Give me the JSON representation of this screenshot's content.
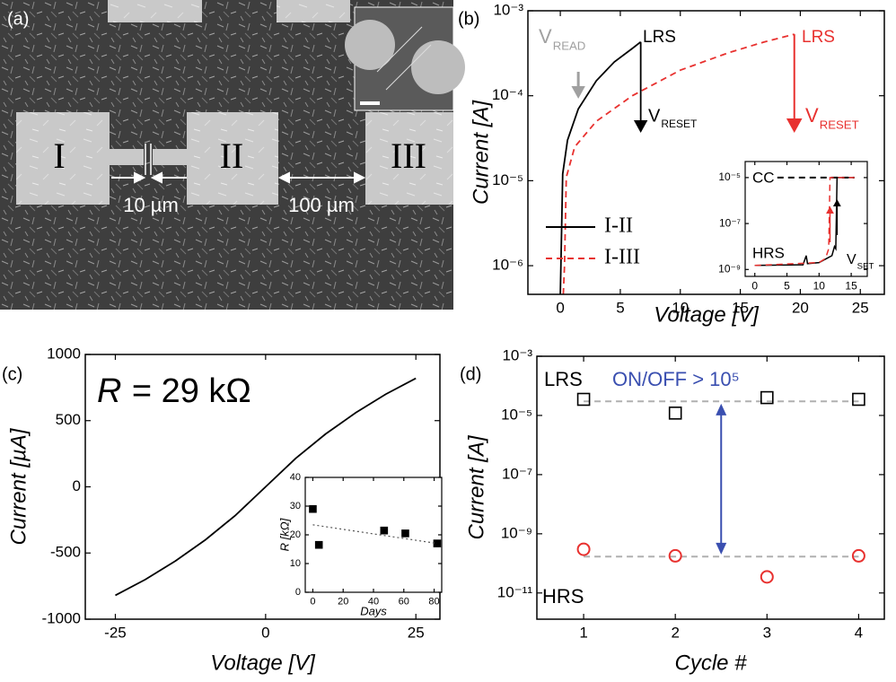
{
  "image_panel": {
    "label": "(a)",
    "pad_labels": [
      "I",
      "II",
      "III"
    ],
    "scale_labels": [
      "10 µm",
      "100 µm"
    ]
  },
  "chart_data": [
    {
      "type": "line",
      "panel_label": "(b)",
      "xlabel": "Voltage [V]",
      "ylabel": "Current [A]",
      "xlim": [
        -2.7,
        27
      ],
      "xticks": [
        0,
        5,
        10,
        15,
        20,
        25
      ],
      "ylim": [
        4.6e-07,
        0.001
      ],
      "yscale": "log",
      "yticks": [
        {
          "value": 0.001,
          "label": "10⁻³"
        },
        {
          "value": 0.0001,
          "label": "10⁻⁴"
        },
        {
          "value": 1e-05,
          "label": "10⁻⁵"
        },
        {
          "value": 1e-06,
          "label": "10⁻⁶"
        }
      ],
      "legend": "lower left",
      "series": [
        {
          "name": "I-II",
          "color": "#000000",
          "style": "solid",
          "x": [
            0,
            0.05,
            0.2,
            0.6,
            1.5,
            3,
            4.5,
            6,
            6.7
          ],
          "values": [
            4.6e-07,
            1e-06,
            1.2e-05,
            3e-05,
            7e-05,
            0.00015,
            0.00025,
            0.00036,
            0.00043
          ]
        },
        {
          "name": "I-III",
          "color": "#e8312f",
          "style": "dashed",
          "x": [
            0.25,
            0.35,
            0.5,
            1.2,
            3,
            6,
            10,
            14,
            17,
            19.5
          ],
          "values": [
            4.6e-07,
            1e-06,
            1.1e-05,
            2.5e-05,
            5e-05,
            0.0001,
            0.0002,
            0.00032,
            0.00043,
            0.00053
          ]
        }
      ],
      "annotations": [
        {
          "text": "V",
          "sub": "READ",
          "color": "#a0a0a0"
        },
        {
          "text": "LRS",
          "color": "#000000"
        },
        {
          "text": "V",
          "sub": "RESET",
          "color": "#000000"
        },
        {
          "text": "LRS",
          "color": "#e8312f"
        },
        {
          "text": "V",
          "sub": "RESET",
          "color": "#e8312f"
        }
      ]
    },
    {
      "type": "line",
      "xlim": [
        -1.5,
        17.5
      ],
      "xticks": [
        0,
        5,
        10,
        15
      ],
      "ylim": [
        5e-10,
        5e-05
      ],
      "yscale": "log",
      "yticks": [
        {
          "value": 1e-05,
          "label": "10⁻⁵"
        },
        {
          "value": 1e-07,
          "label": "10⁻⁷"
        },
        {
          "value": 1e-09,
          "label": "10⁻⁹"
        }
      ],
      "series": [
        {
          "color": "#000000",
          "style": "solid",
          "x": [
            0,
            7.5,
            8,
            8.2,
            10,
            12,
            12.4,
            12.6,
            12.8,
            15.5
          ],
          "values": [
            1.5e-09,
            1.6e-09,
            4e-09,
            1.8e-09,
            2e-09,
            4e-09,
            1e-08,
            8e-09,
            1e-05,
            1e-05
          ]
        },
        {
          "color": "#e8312f",
          "style": "dashed",
          "x": [
            0,
            10,
            11,
            11.5,
            11.7,
            11.9,
            15.5
          ],
          "values": [
            1.5e-09,
            2e-09,
            3e-09,
            8e-09,
            1e-05,
            1e-05,
            1e-05
          ]
        }
      ],
      "reference_lines": [
        {
          "value": 1e-05,
          "x": [
            3.5,
            15.5
          ],
          "color": "#000000",
          "style": "dashed"
        }
      ],
      "annotations": [
        {
          "text": "CC",
          "color": "#000000"
        },
        {
          "text": "HRS",
          "color": "#000000"
        },
        {
          "text": "V",
          "sub": "SET",
          "color": "#000000"
        }
      ]
    },
    {
      "type": "line",
      "panel_label": "(c)",
      "xlabel": "Voltage [V]",
      "ylabel": "Current [µA]",
      "xlim": [
        -30,
        29
      ],
      "xticks": [
        -25,
        0,
        25
      ],
      "ylim": [
        -1000,
        1000
      ],
      "yticks": [
        -1000,
        -500,
        0,
        500,
        1000
      ],
      "series": [
        {
          "color": "#000000",
          "style": "solid",
          "x": [
            -25,
            -20,
            -15,
            -10,
            -5,
            0,
            5,
            10,
            15,
            20,
            25
          ],
          "values": [
            -820,
            -700,
            -560,
            -400,
            -215,
            0,
            215,
            400,
            560,
            700,
            820
          ]
        }
      ],
      "annotations": [
        {
          "text": "R",
          "rest": "= 29 kΩ",
          "color": "#000000"
        }
      ]
    },
    {
      "type": "scatter",
      "xlabel": "Days",
      "ylabel": "R [kΩ]",
      "xlim": [
        -5,
        85
      ],
      "xticks": [
        0,
        20,
        40,
        60,
        80
      ],
      "ylim": [
        0,
        40
      ],
      "yticks": [
        0,
        10,
        20,
        30,
        40
      ],
      "series": [
        {
          "color": "#000000",
          "marker": "filled-square",
          "x": [
            0,
            4,
            47,
            61,
            82
          ],
          "values": [
            29,
            16.5,
            21.5,
            20.5,
            17
          ]
        },
        {
          "color": "#555555",
          "style": "dotted",
          "x": [
            0,
            82
          ],
          "values": [
            23.5,
            17
          ]
        }
      ]
    },
    {
      "type": "scatter",
      "panel_label": "(d)",
      "xlabel": "Cycle #",
      "ylabel": "Current [A]",
      "xlim": [
        0.49,
        4.28
      ],
      "xticks": [
        1,
        2,
        3,
        4
      ],
      "ylim": [
        1.3e-12,
        0.001
      ],
      "yscale": "log",
      "yticks": [
        {
          "value": 0.001,
          "label": "10⁻³"
        },
        {
          "value": 1e-05,
          "label": "10⁻⁵"
        },
        {
          "value": 1e-07,
          "label": "10⁻⁷"
        },
        {
          "value": 1e-09,
          "label": "10⁻⁹"
        },
        {
          "value": 1e-11,
          "label": "10⁻¹¹"
        }
      ],
      "series": [
        {
          "color": "#000000",
          "marker": "square",
          "x": [
            1,
            2,
            3,
            4
          ],
          "values": [
            3.5e-05,
            1.2e-05,
            4e-05,
            3.5e-05
          ]
        },
        {
          "color": "#e8312f",
          "marker": "circle",
          "x": [
            1,
            2,
            3,
            4
          ],
          "values": [
            3e-10,
            1.8e-10,
            3.5e-11,
            1.8e-10
          ]
        }
      ],
      "reference_lines": [
        {
          "value": 3e-05,
          "x": [
            1,
            4
          ],
          "color": "#b0b0b0",
          "style": "dashed"
        },
        {
          "value": 1.7e-10,
          "x": [
            1,
            4
          ],
          "color": "#b0b0b0",
          "style": "dashed"
        }
      ],
      "annotations": [
        {
          "text": "LRS",
          "color": "#000000"
        },
        {
          "text": "HRS",
          "color": "#000000"
        },
        {
          "text": "ON/OFF > 10⁵",
          "color": "#3a4fb0"
        }
      ]
    }
  ]
}
